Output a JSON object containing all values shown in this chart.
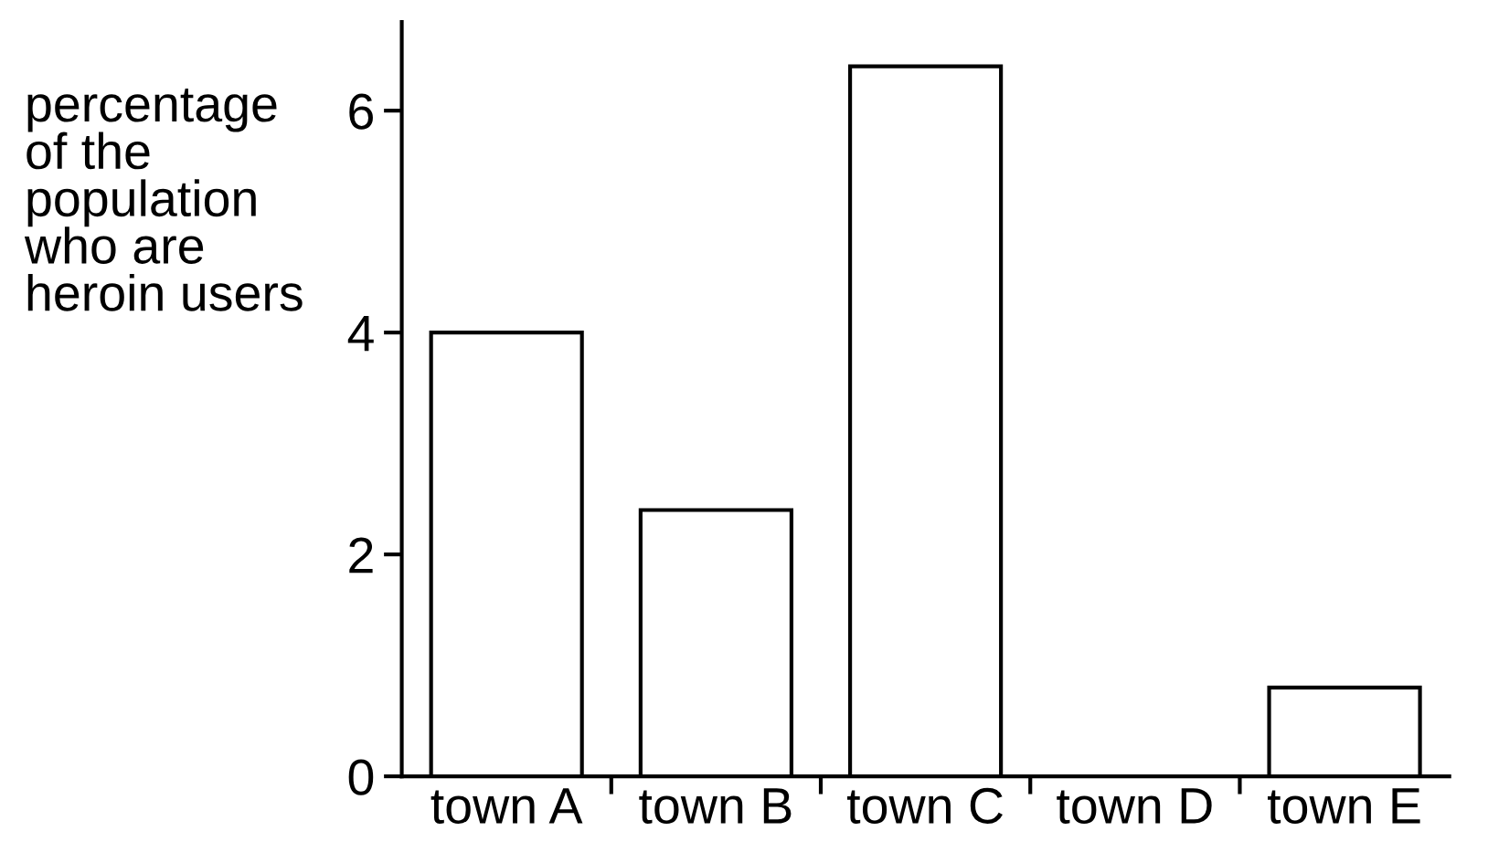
{
  "chart_data": {
    "type": "bar",
    "ylabel": "percentage\nof the\npopulation\nwho are\nheroin users",
    "categories": [
      "town A",
      "town B",
      "town C",
      "town D",
      "town E"
    ],
    "values": [
      4.0,
      2.4,
      6.4,
      0,
      0.8
    ],
    "color": "#ffffff",
    "ylim": [
      0,
      6.8
    ],
    "yticks": [
      0,
      2,
      4,
      6
    ],
    "grid": false,
    "legend": false
  }
}
